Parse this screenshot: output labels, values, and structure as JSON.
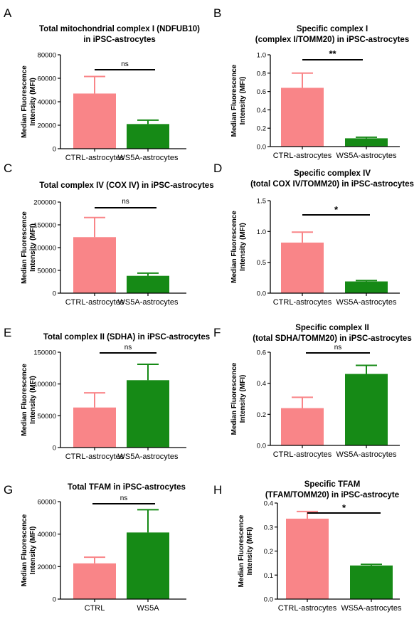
{
  "chart_data": [
    {
      "type": "bar",
      "panel_label": "A",
      "title_lines": [
        "Total mitochondrial complex I (NDFUB10)",
        "in iPSC-astrocytes"
      ],
      "ylabel_lines": [
        "Median Fluorescence",
        "Intensity (MFI)"
      ],
      "categories": [
        "CTRL-astrocytes",
        "WS5A-astrocytes"
      ],
      "values": [
        47000,
        21000
      ],
      "errors": [
        14500,
        3300
      ],
      "ylim": [
        0,
        80000
      ],
      "yticks": [
        0,
        20000,
        40000,
        60000,
        80000
      ],
      "significance": "ns",
      "colors": [
        "#f98588",
        "#168a16"
      ]
    },
    {
      "type": "bar",
      "panel_label": "B",
      "title_lines": [
        "Specific complex I",
        "(complex I/TOMM20) in iPSC-astrocytes"
      ],
      "ylabel_lines": [
        "Median Fluorescence",
        "Intensity (MFI)"
      ],
      "categories": [
        "CTRL-astrocytes",
        "WS5A-astrocytes"
      ],
      "values": [
        0.64,
        0.09
      ],
      "errors": [
        0.16,
        0.012
      ],
      "ylim": [
        0,
        1.0
      ],
      "yticks": [
        0.0,
        0.2,
        0.4,
        0.6,
        0.8,
        1.0
      ],
      "significance": "**",
      "colors": [
        "#f98588",
        "#168a16"
      ]
    },
    {
      "type": "bar",
      "panel_label": "C",
      "title_lines": [
        "Total complex IV (COX IV) in iPSC-astrocytes"
      ],
      "ylabel_lines": [
        "Median Fluorescence",
        "Intensity (MFI)"
      ],
      "categories": [
        "CTRL-astrocytes",
        "WS5A-astrocytes"
      ],
      "values": [
        123000,
        38000
      ],
      "errors": [
        43000,
        6000
      ],
      "ylim": [
        0,
        200000
      ],
      "yticks": [
        0,
        50000,
        100000,
        150000,
        200000
      ],
      "significance": "ns",
      "colors": [
        "#f98588",
        "#168a16"
      ]
    },
    {
      "type": "bar",
      "panel_label": "D",
      "title_lines": [
        "Specific complex IV",
        "(total COX IV/TOMM20) in iPSC-astrocytes"
      ],
      "ylabel_lines": [
        "Median Fluorescence",
        "Intensity (MFI)"
      ],
      "categories": [
        "CTRL-astrocytes",
        "WS5A-astrocytes"
      ],
      "values": [
        0.82,
        0.19
      ],
      "errors": [
        0.17,
        0.015
      ],
      "ylim": [
        0,
        1.5
      ],
      "yticks": [
        0.0,
        0.5,
        1.0,
        1.5
      ],
      "significance": "*",
      "colors": [
        "#f98588",
        "#168a16"
      ]
    },
    {
      "type": "bar",
      "panel_label": "E",
      "title_lines": [
        "Total complex II (SDHA) in iPSC-astrocytes"
      ],
      "ylabel_lines": [
        "Median Fluorescence",
        "Intensity (MFI)"
      ],
      "categories": [
        "CTRL-astrocytes",
        "WS5A-astrocytes"
      ],
      "values": [
        63000,
        106000
      ],
      "errors": [
        23000,
        25000
      ],
      "ylim": [
        0,
        150000
      ],
      "yticks": [
        0,
        50000,
        100000,
        150000
      ],
      "significance": "ns",
      "colors": [
        "#f98588",
        "#168a16"
      ]
    },
    {
      "type": "bar",
      "panel_label": "F",
      "title_lines": [
        "Specific complex II",
        "(total SDHA/TOMM20) in iPSC-astrocytes"
      ],
      "ylabel_lines": [
        "Median Fluorescence",
        "Intensity (MFI)"
      ],
      "categories": [
        "CTRL-astrocytes",
        "WS5A-astrocytes"
      ],
      "values": [
        0.24,
        0.46
      ],
      "errors": [
        0.07,
        0.055
      ],
      "ylim": [
        0,
        0.6
      ],
      "yticks": [
        0.0,
        0.2,
        0.4,
        0.6
      ],
      "significance": "ns",
      "colors": [
        "#f98588",
        "#168a16"
      ]
    },
    {
      "type": "bar",
      "panel_label": "G",
      "title_lines": [
        "Total TFAM in iPSC-astrocytes"
      ],
      "ylabel_lines": [
        "Median Fluorescence",
        "Intensity (MFI)"
      ],
      "categories": [
        "CTRL",
        "WS5A"
      ],
      "values": [
        22000,
        41000
      ],
      "errors": [
        3800,
        14000
      ],
      "ylim": [
        0,
        60000
      ],
      "yticks": [
        0,
        20000,
        40000,
        60000
      ],
      "significance": "ns",
      "colors": [
        "#f98588",
        "#168a16"
      ]
    },
    {
      "type": "bar",
      "panel_label": "H",
      "title_lines": [
        "Specific TFAM",
        "(TFAM/TOMM20) in iPSC-astrocyte"
      ],
      "ylabel_lines": [
        "Median Fluorescence",
        "Intensity (MFI)"
      ],
      "categories": [
        "CTRL-astrocytes",
        "WS5A-astrocytes"
      ],
      "values": [
        0.335,
        0.14
      ],
      "errors": [
        0.03,
        0.005
      ],
      "ylim": [
        0,
        0.4
      ],
      "yticks": [
        0.0,
        0.1,
        0.2,
        0.3,
        0.4
      ],
      "significance": "*",
      "colors": [
        "#f98588",
        "#168a16"
      ]
    }
  ]
}
